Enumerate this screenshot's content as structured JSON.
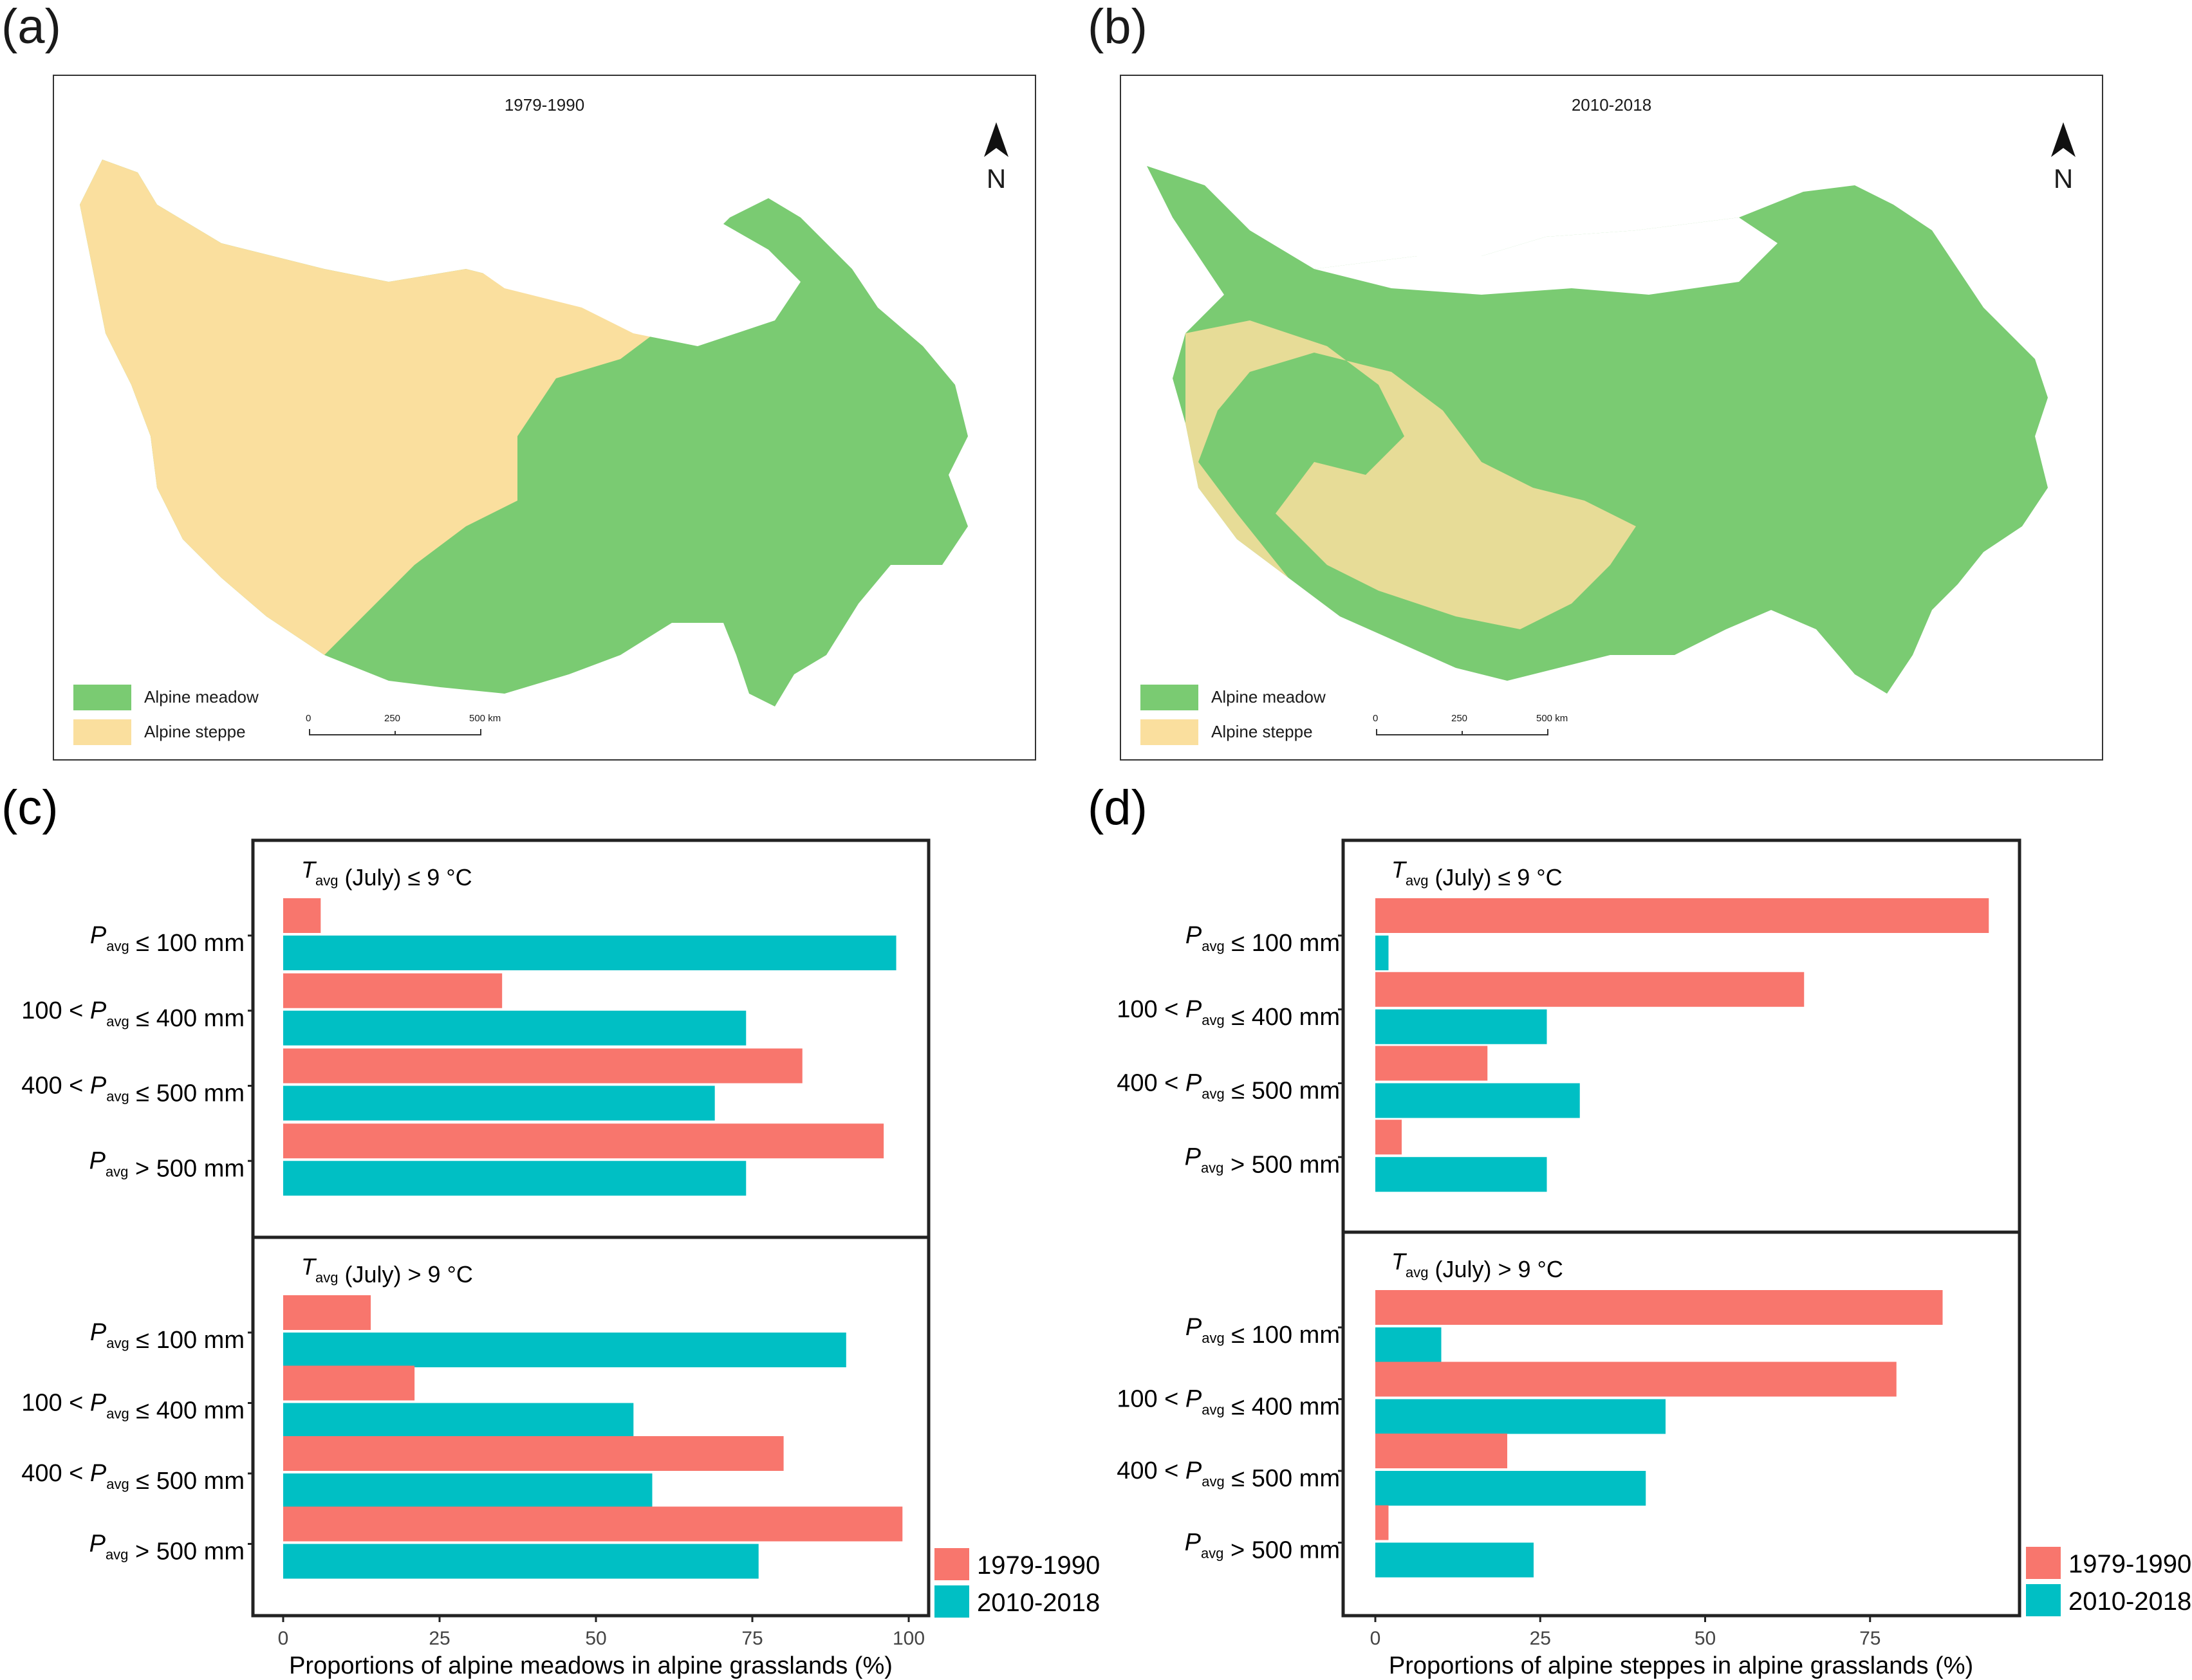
{
  "colors": {
    "meadow": "#7acb72",
    "steppe": "#fadf9e",
    "series_1979": "#f8766d",
    "series_2010": "#00bfc4"
  },
  "maps": [
    {
      "letter": "(a)",
      "title": "1979-1990",
      "north_label": "N",
      "legend": [
        "Alpine meadow",
        "Alpine steppe"
      ],
      "scale_ticks": [
        "0",
        "250",
        "500 km"
      ]
    },
    {
      "letter": "(b)",
      "title": "2010-2018",
      "north_label": "N",
      "legend": [
        "Alpine meadow",
        "Alpine steppe"
      ],
      "scale_ticks": [
        "0",
        "250",
        "500 km"
      ]
    }
  ],
  "chart_data": [
    {
      "letter": "(c)",
      "type": "bar",
      "orientation": "horizontal",
      "xlabel": "Proportions of alpine meadows in alpine grasslands (%)",
      "xlim": [
        0,
        100
      ],
      "xticks": [
        0,
        25,
        50,
        75,
        100
      ],
      "legend": [
        "1979-1990",
        "2010-2018"
      ],
      "facets": [
        {
          "strip": "T_avg (July) ≤ 9 °C",
          "categories": [
            "P_avg ≤ 100 mm",
            "100 < P_avg ≤ 400 mm",
            "400 < P_avg ≤ 500 mm",
            "P_avg > 500 mm"
          ],
          "series": [
            {
              "name": "1979-1990",
              "values": [
                6,
                35,
                83,
                96
              ]
            },
            {
              "name": "2010-2018",
              "values": [
                98,
                74,
                69,
                74
              ]
            }
          ]
        },
        {
          "strip": "T_avg (July) > 9 °C",
          "categories": [
            "P_avg ≤ 100 mm",
            "100 < P_avg ≤ 400 mm",
            "400 < P_avg ≤ 500 mm",
            "P_avg > 500 mm"
          ],
          "series": [
            {
              "name": "1979-1990",
              "values": [
                14,
                21,
                80,
                99
              ]
            },
            {
              "name": "2010-2018",
              "values": [
                90,
                56,
                59,
                76
              ]
            }
          ]
        }
      ]
    },
    {
      "letter": "(d)",
      "type": "bar",
      "orientation": "horizontal",
      "xlabel": "Proportions of alpine steppes in alpine grasslands (%)",
      "xlim": [
        0,
        100
      ],
      "xticks": [
        0,
        25,
        50,
        75
      ],
      "legend": [
        "1979-1990",
        "2010-2018"
      ],
      "facets": [
        {
          "strip": "T_avg (July) ≤ 9 °C",
          "categories": [
            "P_avg ≤ 100 mm",
            "100 < P_avg ≤ 400 mm",
            "400 < P_avg ≤ 500 mm",
            "P_avg > 500 mm"
          ],
          "series": [
            {
              "name": "1979-1990",
              "values": [
                93,
                65,
                17,
                4
              ]
            },
            {
              "name": "2010-2018",
              "values": [
                2,
                26,
                31,
                26
              ]
            }
          ]
        },
        {
          "strip": "T_avg (July) > 9 °C",
          "categories": [
            "P_avg ≤ 100 mm",
            "100 < P_avg ≤ 400 mm",
            "400 < P_avg ≤ 500 mm",
            "P_avg > 500 mm"
          ],
          "series": [
            {
              "name": "1979-1990",
              "values": [
                86,
                79,
                20,
                2
              ]
            },
            {
              "name": "2010-2018",
              "values": [
                10,
                44,
                41,
                24
              ]
            }
          ]
        }
      ]
    }
  ]
}
